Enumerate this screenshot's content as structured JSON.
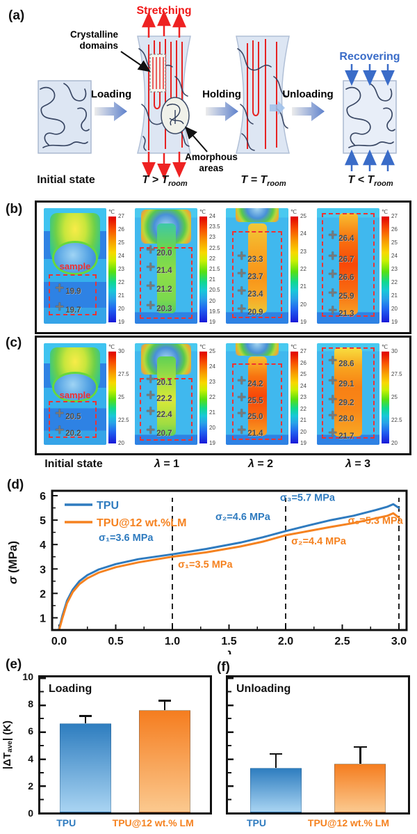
{
  "colors": {
    "tpu_blue": "#2f7bbf",
    "lm_orange": "#f58220",
    "arrow_red": "#ee2222",
    "recover_blue": "#3a6cc8",
    "dashed_red": "#ee3333"
  },
  "panel_a": {
    "label": "(a)",
    "stretching": "Stretching",
    "crystalline_line1": "Crystalline",
    "crystalline_line2": "domains",
    "amorphous_line1": "Amorphous",
    "amorphous_line2": "areas",
    "loading": "Loading",
    "holding": "Holding",
    "unloading": "Unloading",
    "recovering": "Recovering",
    "captions": {
      "initial": "Initial state",
      "hot_main": "T > T",
      "hot_sub": "room",
      "room_main": "T = T",
      "room_sub": "room",
      "cold_main": "T < T",
      "cold_sub": "room"
    }
  },
  "panel_b": {
    "label": "(b)",
    "images": [
      {
        "unit": "℃",
        "sample_label": "sample",
        "ticks": [
          "27",
          "26",
          "25",
          "24",
          "23",
          "22",
          "21",
          "20",
          "19"
        ],
        "markers": [
          {
            "v": "19.9",
            "y": 70
          },
          {
            "v": "19.7",
            "y": 86
          }
        ]
      },
      {
        "unit": "℃",
        "ticks": [
          "24",
          "23.5",
          "23",
          "22.5",
          "22",
          "21.5",
          "21",
          "20.5",
          "20",
          "19.5",
          "19"
        ],
        "markers": [
          {
            "v": "20.0",
            "y": 37
          },
          {
            "v": "21.4",
            "y": 52
          },
          {
            "v": "21.2",
            "y": 68
          },
          {
            "v": "20.3",
            "y": 85
          }
        ]
      },
      {
        "unit": "℃",
        "ticks": [
          "25",
          "24",
          "23",
          "22",
          "21",
          "20",
          "19"
        ],
        "markers": [
          {
            "v": "23.3",
            "y": 42
          },
          {
            "v": "23.7",
            "y": 57
          },
          {
            "v": "23.4",
            "y": 72
          },
          {
            "v": "20.9",
            "y": 88
          }
        ]
      },
      {
        "unit": "℃",
        "ticks": [
          "27",
          "26",
          "25",
          "24",
          "23",
          "22",
          "21",
          "20",
          "19"
        ],
        "markers": [
          {
            "v": "26.4",
            "y": 24
          },
          {
            "v": "26.7",
            "y": 42
          },
          {
            "v": "26.6",
            "y": 58
          },
          {
            "v": "25.9",
            "y": 74
          },
          {
            "v": "21.3",
            "y": 89
          }
        ]
      }
    ]
  },
  "panel_c": {
    "label": "(c)",
    "images": [
      {
        "unit": "℃",
        "sample_label": "sample",
        "ticks": [
          "30",
          "27.5",
          "25",
          "22.5",
          "20"
        ],
        "markers": [
          {
            "v": "20.5",
            "y": 70
          },
          {
            "v": "20.2",
            "y": 86
          }
        ]
      },
      {
        "unit": "℃",
        "ticks": [
          "25",
          "24",
          "23",
          "22",
          "21",
          "20",
          "19"
        ],
        "markers": [
          {
            "v": "20.1",
            "y": 36
          },
          {
            "v": "22.2",
            "y": 52
          },
          {
            "v": "22.4",
            "y": 68
          },
          {
            "v": "20.7",
            "y": 86
          }
        ]
      },
      {
        "unit": "℃",
        "ticks": [
          "27",
          "26",
          "25",
          "24",
          "23",
          "22",
          "21",
          "20",
          "19"
        ],
        "markers": [
          {
            "v": "24.2",
            "y": 38
          },
          {
            "v": "25.5",
            "y": 54
          },
          {
            "v": "25.0",
            "y": 70
          },
          {
            "v": "21.4",
            "y": 86
          }
        ]
      },
      {
        "unit": "℃",
        "ticks": [
          "30",
          "27.5",
          "25",
          "22.5",
          "20"
        ],
        "markers": [
          {
            "v": "28.6",
            "y": 18
          },
          {
            "v": "29.1",
            "y": 38
          },
          {
            "v": "29.2",
            "y": 56
          },
          {
            "v": "28.0",
            "y": 72
          },
          {
            "v": "21.7",
            "y": 89
          }
        ]
      }
    ]
  },
  "row_captions": {
    "initial": "Initial state",
    "lam": "λ",
    "v1": " = 1",
    "v2": " = 2",
    "v3": " = 3"
  },
  "panel_d": {
    "label": "(d)"
  },
  "panel_e": {
    "label": "(e)",
    "title": "Loading",
    "ylabel_pre": "|ΔT",
    "ylabel_sub": "ave",
    "ylabel_post": "| (K)",
    "ytick_labels": [
      "10",
      "8",
      "6",
      "4",
      "2",
      "0"
    ]
  },
  "panel_f": {
    "label": "(f)",
    "title": "Unloading"
  },
  "chart_data": [
    {
      "id": "d",
      "type": "line",
      "xlabel": "λ",
      "ylabel_italic": "σ",
      "ylabel_rest": " (MPa)",
      "xlim": [
        -0.05,
        3.08
      ],
      "ylim": [
        0.5,
        6.2
      ],
      "xticks": [
        0.0,
        0.5,
        1.0,
        1.5,
        2.0,
        2.5,
        3.0
      ],
      "yticks": [
        1,
        2,
        3,
        4,
        5,
        6
      ],
      "dashed_vlines": [
        1.0,
        2.0,
        3.0
      ],
      "series": [
        {
          "name": "TPU",
          "color": "#2f7bbf",
          "x": [
            0,
            0.03,
            0.07,
            0.12,
            0.18,
            0.25,
            0.35,
            0.5,
            0.7,
            1.0,
            1.3,
            1.6,
            1.8,
            2.0,
            2.2,
            2.4,
            2.6,
            2.8,
            2.9,
            2.95,
            3.0
          ],
          "y": [
            0.55,
            1.1,
            1.7,
            2.15,
            2.5,
            2.75,
            2.98,
            3.2,
            3.4,
            3.6,
            3.82,
            4.08,
            4.3,
            4.55,
            4.78,
            5.0,
            5.18,
            5.42,
            5.55,
            5.65,
            5.5
          ]
        },
        {
          "name": "TPU@12 wt.%LM",
          "color": "#f58220",
          "x": [
            0,
            0.03,
            0.07,
            0.12,
            0.18,
            0.25,
            0.35,
            0.5,
            0.7,
            1.0,
            1.3,
            1.6,
            1.8,
            2.0,
            2.2,
            2.4,
            2.6,
            2.8,
            2.9,
            2.95,
            3.0
          ],
          "y": [
            0.5,
            1.0,
            1.6,
            2.05,
            2.38,
            2.62,
            2.85,
            3.07,
            3.27,
            3.5,
            3.68,
            3.92,
            4.12,
            4.38,
            4.55,
            4.72,
            4.88,
            5.08,
            5.18,
            5.28,
            5.1
          ]
        }
      ],
      "annotations": [
        {
          "text": "σ₁=3.6 MPa",
          "color": "#2f7bbf",
          "x": 0.35,
          "y": 4.15
        },
        {
          "text": "σ₁=3.5 MPa",
          "color": "#f58220",
          "x": 1.05,
          "y": 3.05
        },
        {
          "text": "σ₂=4.6 MPa",
          "color": "#2f7bbf",
          "x": 1.38,
          "y": 5.0
        },
        {
          "text": "σ₂=4.4 MPa",
          "color": "#f58220",
          "x": 2.05,
          "y": 4.0
        },
        {
          "text": "σ₃=5.7 MPa",
          "color": "#2f7bbf",
          "x": 1.95,
          "y": 5.78
        },
        {
          "text": "σ₃=5.3 MPa",
          "color": "#f58220",
          "x": 2.55,
          "y": 4.85
        }
      ]
    },
    {
      "id": "panel-e",
      "type": "bar",
      "title": "Loading",
      "categories": [
        "TPU",
        "TPU@12 wt.% LM"
      ],
      "values": [
        6.6,
        7.6
      ],
      "errors_low": [
        0.55,
        0.7
      ],
      "errors_high": [
        0.6,
        0.75
      ],
      "ylim": [
        0,
        10
      ],
      "yticks": [
        0,
        2,
        4,
        6,
        8,
        10
      ],
      "bar_top_colors": [
        "#2e7dbf",
        "#f57d1f"
      ],
      "bar_bottom_colors": [
        "#a9d4f2",
        "#fbc98f"
      ],
      "label_colors": [
        "#2f7bbf",
        "#f58220"
      ]
    },
    {
      "id": "panel-f",
      "type": "bar",
      "title": "Unloading",
      "categories": [
        "TPU",
        "TPU@12 wt.% LM"
      ],
      "values": [
        3.3,
        3.6
      ],
      "errors_low": [
        1.1,
        1.3
      ],
      "errors_high": [
        1.1,
        1.3
      ],
      "ylim": [
        0,
        10
      ],
      "yticks": [
        0,
        2,
        4,
        6,
        8,
        10
      ],
      "bar_top_colors": [
        "#2e7dbf",
        "#f57d1f"
      ],
      "bar_bottom_colors": [
        "#a9d4f2",
        "#fbc98f"
      ],
      "label_colors": [
        "#2f7bbf",
        "#f58220"
      ]
    }
  ]
}
